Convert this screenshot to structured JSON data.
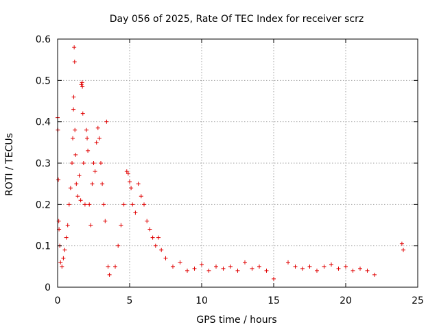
{
  "chart_data": {
    "type": "scatter",
    "title": "Day 056 of 2025, Rate Of TEC Index for receiver scrz",
    "xlabel": "GPS time / hours",
    "ylabel": "ROTI / TECUs",
    "xlim": [
      0,
      25
    ],
    "ylim": [
      0,
      0.6
    ],
    "xticks": [
      "0",
      "5",
      "10",
      "15",
      "20",
      "25"
    ],
    "yticks": [
      "0",
      "0.1",
      "0.2",
      "0.3",
      "0.4",
      "0.5",
      "0.6"
    ],
    "grid": true,
    "marker": "+",
    "color": "#e00000",
    "series": [
      {
        "name": "ROTI",
        "points": [
          [
            0.0,
            0.41
          ],
          [
            0.02,
            0.38
          ],
          [
            0.05,
            0.26
          ],
          [
            0.08,
            0.16
          ],
          [
            0.1,
            0.14
          ],
          [
            0.15,
            0.1
          ],
          [
            0.2,
            0.06
          ],
          [
            0.3,
            0.05
          ],
          [
            0.4,
            0.07
          ],
          [
            0.5,
            0.09
          ],
          [
            0.6,
            0.12
          ],
          [
            0.7,
            0.15
          ],
          [
            0.8,
            0.2
          ],
          [
            0.9,
            0.24
          ],
          [
            1.0,
            0.3
          ],
          [
            1.05,
            0.36
          ],
          [
            1.1,
            0.43
          ],
          [
            1.12,
            0.46
          ],
          [
            1.15,
            0.58
          ],
          [
            1.18,
            0.545
          ],
          [
            1.2,
            0.38
          ],
          [
            1.25,
            0.32
          ],
          [
            1.3,
            0.25
          ],
          [
            1.4,
            0.22
          ],
          [
            1.5,
            0.27
          ],
          [
            1.6,
            0.21
          ],
          [
            1.65,
            0.49
          ],
          [
            1.7,
            0.495
          ],
          [
            1.72,
            0.485
          ],
          [
            1.75,
            0.42
          ],
          [
            1.8,
            0.3
          ],
          [
            1.9,
            0.2
          ],
          [
            2.0,
            0.38
          ],
          [
            2.05,
            0.36
          ],
          [
            2.1,
            0.33
          ],
          [
            2.2,
            0.2
          ],
          [
            2.3,
            0.15
          ],
          [
            2.4,
            0.25
          ],
          [
            2.5,
            0.3
          ],
          [
            2.6,
            0.28
          ],
          [
            2.7,
            0.35
          ],
          [
            2.8,
            0.385
          ],
          [
            2.9,
            0.36
          ],
          [
            3.0,
            0.3
          ],
          [
            3.1,
            0.25
          ],
          [
            3.2,
            0.2
          ],
          [
            3.3,
            0.16
          ],
          [
            3.4,
            0.4
          ],
          [
            3.5,
            0.05
          ],
          [
            3.6,
            0.03
          ],
          [
            4.0,
            0.05
          ],
          [
            4.2,
            0.1
          ],
          [
            4.4,
            0.15
          ],
          [
            4.6,
            0.2
          ],
          [
            4.8,
            0.28
          ],
          [
            4.9,
            0.275
          ],
          [
            5.0,
            0.255
          ],
          [
            5.1,
            0.24
          ],
          [
            5.2,
            0.2
          ],
          [
            5.4,
            0.18
          ],
          [
            5.6,
            0.25
          ],
          [
            5.8,
            0.22
          ],
          [
            6.0,
            0.2
          ],
          [
            6.2,
            0.16
          ],
          [
            6.4,
            0.14
          ],
          [
            6.6,
            0.12
          ],
          [
            6.8,
            0.1
          ],
          [
            7.0,
            0.12
          ],
          [
            7.2,
            0.09
          ],
          [
            7.5,
            0.07
          ],
          [
            8.0,
            0.05
          ],
          [
            8.5,
            0.06
          ],
          [
            9.0,
            0.04
          ],
          [
            9.5,
            0.045
          ],
          [
            10.0,
            0.055
          ],
          [
            10.5,
            0.04
          ],
          [
            11.0,
            0.05
          ],
          [
            11.5,
            0.045
          ],
          [
            12.0,
            0.05
          ],
          [
            12.5,
            0.04
          ],
          [
            13.0,
            0.06
          ],
          [
            13.5,
            0.045
          ],
          [
            14.0,
            0.05
          ],
          [
            14.5,
            0.04
          ],
          [
            15.0,
            0.02
          ],
          [
            16.0,
            0.06
          ],
          [
            16.5,
            0.05
          ],
          [
            17.0,
            0.045
          ],
          [
            17.5,
            0.05
          ],
          [
            18.0,
            0.04
          ],
          [
            18.5,
            0.05
          ],
          [
            19.0,
            0.055
          ],
          [
            19.5,
            0.045
          ],
          [
            20.0,
            0.05
          ],
          [
            20.5,
            0.04
          ],
          [
            21.0,
            0.045
          ],
          [
            21.5,
            0.04
          ],
          [
            22.0,
            0.03
          ],
          [
            23.9,
            0.105
          ],
          [
            24.0,
            0.09
          ]
        ]
      }
    ]
  }
}
